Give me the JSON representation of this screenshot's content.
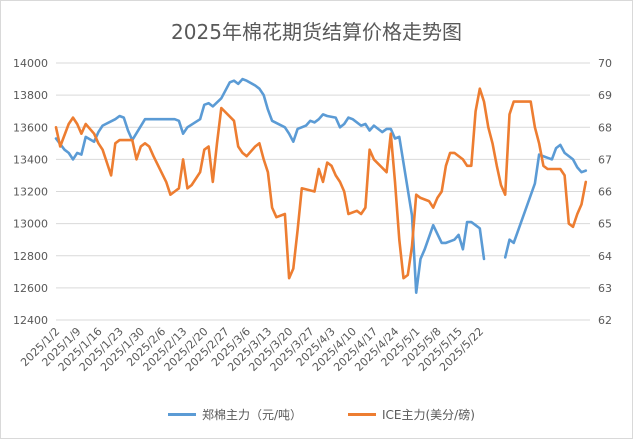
{
  "chart_data": {
    "type": "line",
    "title": "2025年棉花期货结算价格走势图",
    "y_left": {
      "min": 12400,
      "max": 14000,
      "step": 200
    },
    "y_right": {
      "min": 62,
      "max": 70,
      "step": 1
    },
    "x_ticks": [
      "2025/1/2",
      "2025/1/9",
      "2025/1/16",
      "2025/1/23",
      "2025/1/30",
      "2025/2/6",
      "2025/2/13",
      "2025/2/20",
      "2025/2/27",
      "2025/3/6",
      "2025/3/13",
      "2025/3/20",
      "2025/3/27",
      "2025/4/3",
      "2025/4/10",
      "2025/4/17",
      "2025/4/24",
      "2025/5/1",
      "2025/5/8",
      "2025/5/15",
      "2025/5/22"
    ],
    "grid": true,
    "legend_position": "bottom",
    "series": [
      {
        "name": "郑棉主力（元/吨）",
        "axis": "left",
        "color": "#5B9BD5",
        "points": [
          [
            0,
            13530
          ],
          [
            2,
            13460
          ],
          [
            3,
            13440
          ],
          [
            4,
            13400
          ],
          [
            5,
            13440
          ],
          [
            6,
            13430
          ],
          [
            7,
            13540
          ],
          [
            9,
            13510
          ],
          [
            10,
            13570
          ],
          [
            11,
            13610
          ],
          [
            14,
            13650
          ],
          [
            15,
            13670
          ],
          [
            16,
            13660
          ],
          [
            17,
            13580
          ],
          [
            18,
            13520
          ],
          [
            21,
            13650
          ],
          [
            28,
            13650
          ],
          [
            29,
            13640
          ],
          [
            30,
            13560
          ],
          [
            31,
            13600
          ],
          [
            34,
            13650
          ],
          [
            35,
            13740
          ],
          [
            36,
            13750
          ],
          [
            37,
            13730
          ],
          [
            39,
            13780
          ],
          [
            41,
            13880
          ],
          [
            42,
            13890
          ],
          [
            43,
            13870
          ],
          [
            44,
            13900
          ],
          [
            45,
            13890
          ],
          [
            47,
            13860
          ],
          [
            48,
            13840
          ],
          [
            49,
            13800
          ],
          [
            50,
            13710
          ],
          [
            51,
            13640
          ],
          [
            54,
            13600
          ],
          [
            55,
            13560
          ],
          [
            56,
            13510
          ],
          [
            57,
            13590
          ],
          [
            59,
            13610
          ],
          [
            60,
            13640
          ],
          [
            61,
            13630
          ],
          [
            62,
            13650
          ],
          [
            63,
            13680
          ],
          [
            64,
            13670
          ],
          [
            66,
            13660
          ],
          [
            67,
            13600
          ],
          [
            68,
            13620
          ],
          [
            69,
            13660
          ],
          [
            70,
            13650
          ],
          [
            72,
            13610
          ],
          [
            73,
            13620
          ],
          [
            74,
            13580
          ],
          [
            75,
            13610
          ],
          [
            76,
            13590
          ],
          [
            77,
            13570
          ],
          [
            78,
            13590
          ],
          [
            79,
            13590
          ],
          [
            80,
            13530
          ],
          [
            81,
            13540
          ],
          [
            84,
            13050
          ],
          [
            85,
            12570
          ],
          [
            86,
            12780
          ],
          [
            87,
            12840
          ],
          [
            89,
            12990
          ],
          [
            91,
            12880
          ],
          [
            92,
            12880
          ],
          [
            93,
            12890
          ],
          [
            94,
            12900
          ],
          [
            95,
            12930
          ],
          [
            96,
            12840
          ],
          [
            97,
            13010
          ],
          [
            98,
            13010
          ],
          [
            99,
            12990
          ],
          [
            100,
            12970
          ],
          [
            101,
            12780
          ],
          [
            null,
            null
          ],
          [
            106,
            12790
          ],
          [
            107,
            12900
          ],
          [
            108,
            12880
          ],
          [
            113,
            13250
          ],
          [
            114,
            13430
          ],
          [
            116,
            13410
          ],
          [
            117,
            13400
          ],
          [
            118,
            13470
          ],
          [
            119,
            13490
          ],
          [
            120,
            13440
          ],
          [
            122,
            13400
          ],
          [
            123,
            13350
          ],
          [
            124,
            13320
          ],
          [
            125,
            13330
          ]
        ]
      },
      {
        "name": "ICE主力(美分/磅)",
        "axis": "right",
        "color": "#ED7D31",
        "points": [
          [
            0,
            68.0
          ],
          [
            1,
            67.4
          ],
          [
            3,
            68.1
          ],
          [
            4,
            68.3
          ],
          [
            5,
            68.1
          ],
          [
            6,
            67.8
          ],
          [
            7,
            68.1
          ],
          [
            9,
            67.8
          ],
          [
            10,
            67.5
          ],
          [
            11,
            67.3
          ],
          [
            12,
            66.9
          ],
          [
            13,
            66.5
          ],
          [
            14,
            67.5
          ],
          [
            15,
            67.6
          ],
          [
            16,
            67.6
          ],
          [
            18,
            67.6
          ],
          [
            19,
            67.0
          ],
          [
            20,
            67.4
          ],
          [
            21,
            67.5
          ],
          [
            22,
            67.4
          ],
          [
            23,
            67.1
          ],
          [
            26,
            66.3
          ],
          [
            27,
            65.9
          ],
          [
            28,
            66.0
          ],
          [
            29,
            66.1
          ],
          [
            30,
            67.0
          ],
          [
            31,
            66.1
          ],
          [
            32,
            66.2
          ],
          [
            34,
            66.6
          ],
          [
            35,
            67.3
          ],
          [
            36,
            67.4
          ],
          [
            37,
            66.3
          ],
          [
            38,
            67.5
          ],
          [
            39,
            68.6
          ],
          [
            42,
            68.2
          ],
          [
            43,
            67.4
          ],
          [
            44,
            67.2
          ],
          [
            45,
            67.1
          ],
          [
            47,
            67.4
          ],
          [
            48,
            67.5
          ],
          [
            49,
            67.0
          ],
          [
            50,
            66.6
          ],
          [
            51,
            65.5
          ],
          [
            52,
            65.2
          ],
          [
            54,
            65.3
          ],
          [
            55,
            63.3
          ],
          [
            56,
            63.6
          ],
          [
            57,
            64.8
          ],
          [
            58,
            66.1
          ],
          [
            61,
            66.0
          ],
          [
            62,
            66.7
          ],
          [
            63,
            66.3
          ],
          [
            64,
            66.9
          ],
          [
            65,
            66.8
          ],
          [
            66,
            66.5
          ],
          [
            67,
            66.3
          ],
          [
            68,
            66.0
          ],
          [
            69,
            65.3
          ],
          [
            71,
            65.4
          ],
          [
            72,
            65.3
          ],
          [
            73,
            65.5
          ],
          [
            74,
            67.3
          ],
          [
            75,
            67.0
          ],
          [
            78,
            66.6
          ],
          [
            79,
            67.8
          ],
          [
            80,
            66.3
          ],
          [
            81,
            64.5
          ],
          [
            82,
            63.3
          ],
          [
            83,
            63.4
          ],
          [
            84,
            64.3
          ],
          [
            85,
            65.9
          ],
          [
            86,
            65.8
          ],
          [
            88,
            65.7
          ],
          [
            89,
            65.5
          ],
          [
            90,
            65.8
          ],
          [
            91,
            66.0
          ],
          [
            92,
            66.8
          ],
          [
            93,
            67.2
          ],
          [
            94,
            67.2
          ],
          [
            96,
            67.0
          ],
          [
            97,
            66.8
          ],
          [
            98,
            66.8
          ],
          [
            99,
            68.5
          ],
          [
            100,
            69.2
          ],
          [
            101,
            68.8
          ],
          [
            102,
            68.0
          ],
          [
            103,
            67.5
          ],
          [
            104,
            66.8
          ],
          [
            105,
            66.2
          ],
          [
            106,
            65.9
          ],
          [
            107,
            68.4
          ],
          [
            108,
            68.8
          ],
          [
            112,
            68.8
          ],
          [
            113,
            68.0
          ],
          [
            114,
            67.5
          ],
          [
            115,
            66.8
          ],
          [
            116,
            66.7
          ],
          [
            119,
            66.7
          ],
          [
            120,
            66.5
          ],
          [
            121,
            65.0
          ],
          [
            122,
            64.9
          ],
          [
            123,
            65.3
          ],
          [
            124,
            65.6
          ],
          [
            125,
            66.3
          ]
        ]
      }
    ]
  }
}
